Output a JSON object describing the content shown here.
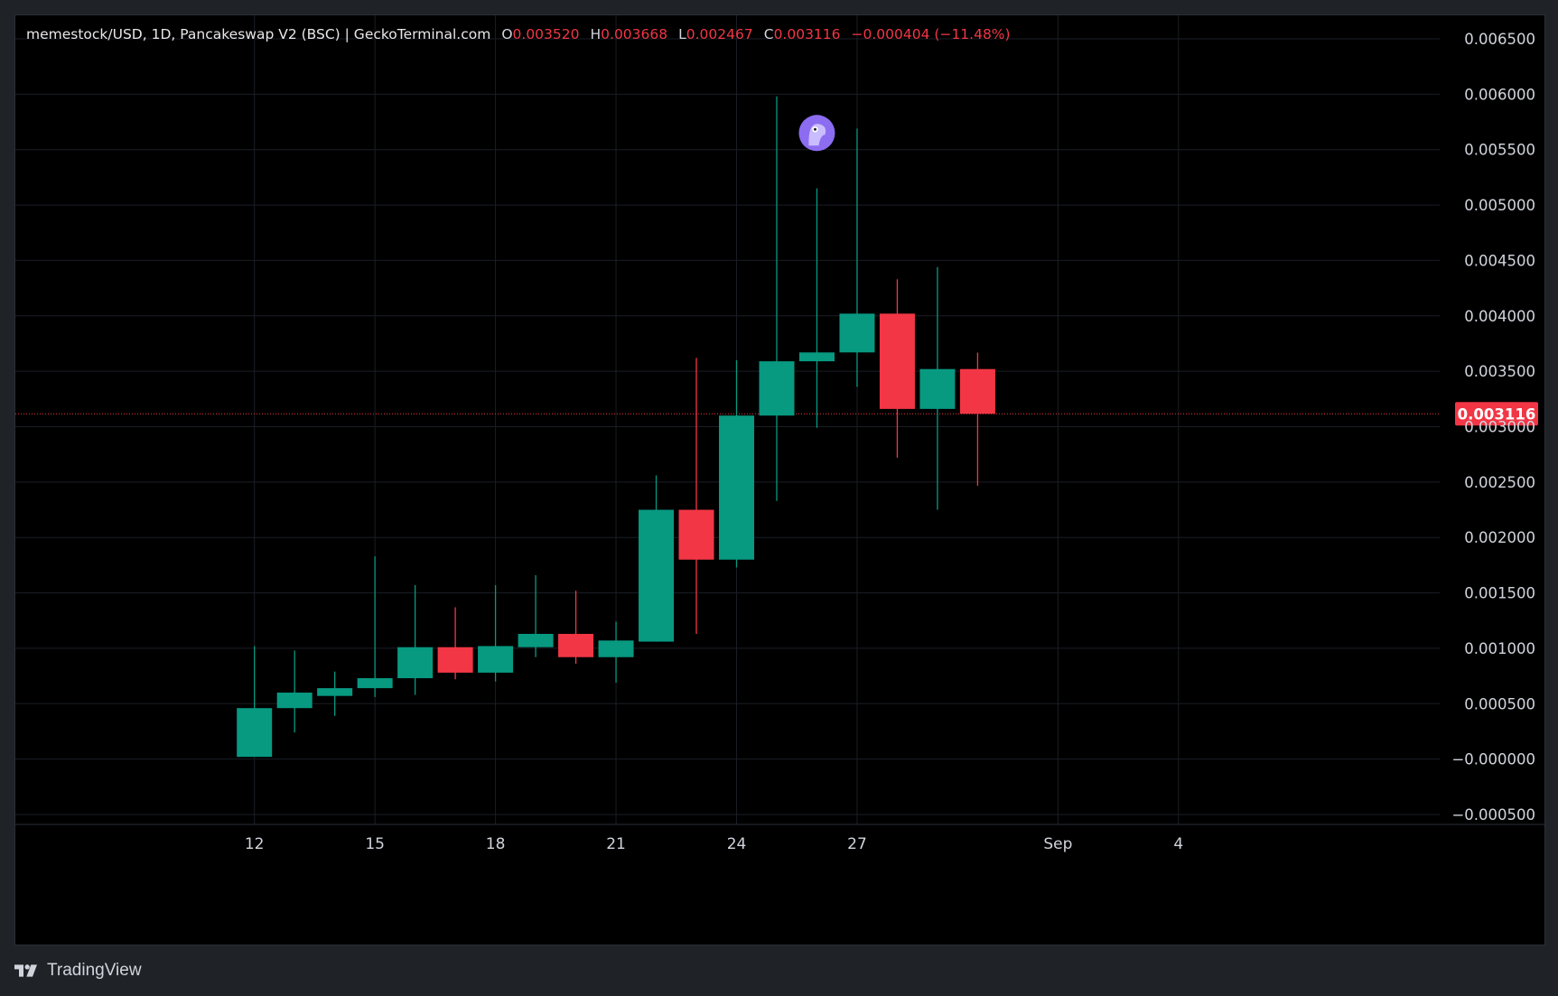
{
  "legend": {
    "symbol_line": "memestock/USD, 1D, Pancakeswap V2 (BSC) | GeckoTerminal.com",
    "o_label": "O",
    "o_value": "0.003520",
    "h_label": "H",
    "h_value": "0.003668",
    "l_label": "L",
    "l_value": "0.002467",
    "c_label": "C",
    "c_value": "0.003116",
    "change": "−0.000404 (−11.48%)"
  },
  "footer": {
    "brand": "TradingView",
    "logo_icon": "tradingview-logo-icon"
  },
  "colors": {
    "up": "#089981",
    "down": "#f23645",
    "background": "#000000",
    "grid": "#1a1e25",
    "text": "#d1d4dc",
    "price_label_bg": "#f23645"
  },
  "chart_data": {
    "type": "candlestick",
    "series_name": "memestock/USD",
    "current_price_label": "0.003116",
    "y_ticks": [
      "0.006500",
      "0.006000",
      "0.005500",
      "0.005000",
      "0.004500",
      "0.004000",
      "0.003500",
      "0.003000",
      "0.002500",
      "0.002000",
      "0.001500",
      "0.001000",
      "0.000500",
      "−0.000000",
      "−0.000500"
    ],
    "y_tick_values": [
      0.0065,
      0.006,
      0.0055,
      0.005,
      0.0045,
      0.004,
      0.0035,
      0.003,
      0.0025,
      0.002,
      0.0015,
      0.001,
      0.0005,
      0.0,
      -0.0005
    ],
    "ylim": [
      -0.0005,
      0.0065
    ],
    "x_ticks": [
      {
        "label": "12",
        "day": 12
      },
      {
        "label": "15",
        "day": 15
      },
      {
        "label": "18",
        "day": 18
      },
      {
        "label": "21",
        "day": 21
      },
      {
        "label": "24",
        "day": 24
      },
      {
        "label": "27",
        "day": 27
      },
      {
        "label": "Sep",
        "day": 32
      },
      {
        "label": "4",
        "day": 35
      }
    ],
    "xlim_days": [
      6.05,
      41.5
    ],
    "grid": true,
    "candles": [
      {
        "day": 12,
        "open": 2e-05,
        "high": 0.00102,
        "low": 2e-05,
        "close": 0.00046
      },
      {
        "day": 13,
        "open": 0.00046,
        "high": 0.00098,
        "low": 0.00024,
        "close": 0.0006
      },
      {
        "day": 14,
        "open": 0.00057,
        "high": 0.00079,
        "low": 0.00039,
        "close": 0.00064
      },
      {
        "day": 15,
        "open": 0.00064,
        "high": 0.00183,
        "low": 0.00056,
        "close": 0.00073
      },
      {
        "day": 16,
        "open": 0.00073,
        "high": 0.00157,
        "low": 0.00058,
        "close": 0.00101
      },
      {
        "day": 17,
        "open": 0.00101,
        "high": 0.00137,
        "low": 0.00072,
        "close": 0.00078
      },
      {
        "day": 18,
        "open": 0.00078,
        "high": 0.00157,
        "low": 0.0007,
        "close": 0.00102
      },
      {
        "day": 19,
        "open": 0.00101,
        "high": 0.00166,
        "low": 0.00092,
        "close": 0.00113
      },
      {
        "day": 20,
        "open": 0.00113,
        "high": 0.00152,
        "low": 0.00086,
        "close": 0.00092
      },
      {
        "day": 21,
        "open": 0.00092,
        "high": 0.00124,
        "low": 0.00069,
        "close": 0.00107
      },
      {
        "day": 22,
        "open": 0.00106,
        "high": 0.00256,
        "low": 0.00106,
        "close": 0.00225
      },
      {
        "day": 23,
        "open": 0.00225,
        "high": 0.00362,
        "low": 0.00113,
        "close": 0.0018
      },
      {
        "day": 24,
        "open": 0.0018,
        "high": 0.0036,
        "low": 0.00173,
        "close": 0.0031
      },
      {
        "day": 25,
        "open": 0.0031,
        "high": 0.00598,
        "low": 0.00233,
        "close": 0.00359
      },
      {
        "day": 26,
        "open": 0.00359,
        "high": 0.00515,
        "low": 0.00299,
        "close": 0.00367
      },
      {
        "day": 27,
        "open": 0.00367,
        "high": 0.00569,
        "low": 0.00336,
        "close": 0.00402
      },
      {
        "day": 28,
        "open": 0.00402,
        "high": 0.00433,
        "low": 0.00272,
        "close": 0.00316
      },
      {
        "day": 29,
        "open": 0.00316,
        "high": 0.00444,
        "low": 0.00225,
        "close": 0.00352
      },
      {
        "day": 30,
        "open": 0.00352,
        "high": 0.003668,
        "low": 0.002467,
        "close": 0.003116
      }
    ],
    "event_marker": {
      "day": 26,
      "price": 0.00565,
      "icon": "gecko-icon"
    }
  }
}
